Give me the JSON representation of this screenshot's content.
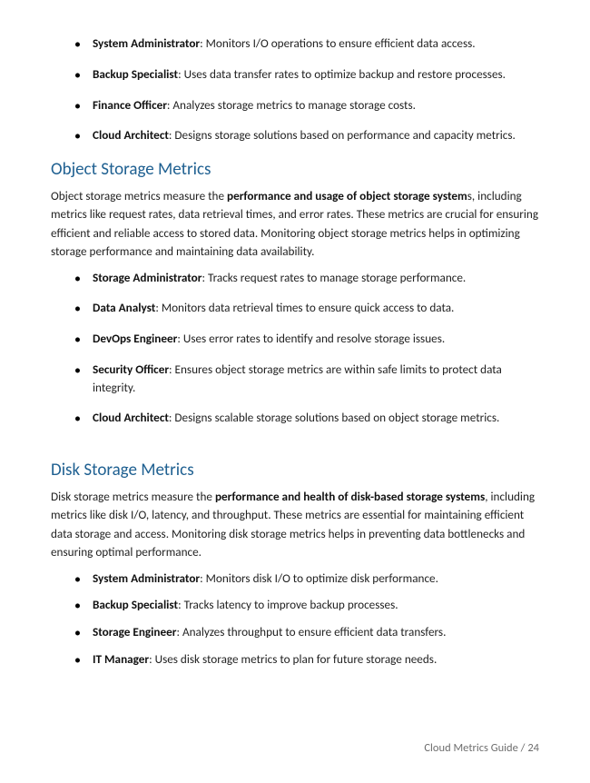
{
  "colors": {
    "heading": "#1f6091",
    "body_text": "#222222",
    "footer_text": "#6e6e6e",
    "background": "#ffffff"
  },
  "typography": {
    "body_font": "Segoe UI",
    "body_size_pt": 10,
    "heading_size_pt": 14,
    "heading_weight": 400
  },
  "top_list": [
    {
      "role": "System Administrator",
      "desc": ": Monitors I/O operations to ensure efficient data access."
    },
    {
      "role": "Backup Specialist",
      "desc": ": Uses data transfer rates to optimize backup and restore processes."
    },
    {
      "role": "Finance Officer",
      "desc": ": Analyzes storage metrics to manage storage costs."
    },
    {
      "role": "Cloud Architect",
      "desc": ": Designs storage solutions based on performance and capacity metrics."
    }
  ],
  "sections": [
    {
      "heading": "Object Storage Metrics",
      "para_pre": "Object storage metrics measure the ",
      "para_bold": "performance and usage of object storage system",
      "para_post": "s, including metrics like request rates, data retrieval times, and error rates. These metrics are crucial for ensuring efficient and reliable access to stored data. Monitoring object storage metrics helps in optimizing storage performance and maintaining data availability.",
      "items": [
        {
          "role": "Storage Administrator",
          "desc": ": Tracks request rates to manage storage performance."
        },
        {
          "role": "Data Analyst",
          "desc": ": Monitors data retrieval times to ensure quick access to data."
        },
        {
          "role": "DevOps Engineer",
          "desc": ": Uses error rates to identify and resolve storage issues."
        },
        {
          "role": "Security Officer",
          "desc": ": Ensures object storage metrics are within safe limits to protect data integrity."
        },
        {
          "role": "Cloud Architect",
          "desc": ": Designs scalable storage solutions based on object storage metrics."
        }
      ]
    },
    {
      "heading": "Disk Storage Metrics",
      "para_pre": "Disk storage metrics measure the ",
      "para_bold": "performance and health of disk-based storage systems",
      "para_post": ", including metrics like disk I/O, latency, and throughput. These metrics are essential for maintaining efficient data storage and access. Monitoring disk storage metrics helps in preventing data bottlenecks and ensuring optimal performance.",
      "items": [
        {
          "role": "System Administrator",
          "desc": ": Monitors disk I/O to optimize disk performance."
        },
        {
          "role": "Backup Specialist",
          "desc": ": Tracks latency to improve backup processes."
        },
        {
          "role": "Storage Engineer",
          "desc": ": Analyzes throughput to ensure efficient data transfers."
        },
        {
          "role": "IT Manager",
          "desc": ": Uses disk storage metrics to plan for future storage needs."
        }
      ]
    }
  ],
  "footer": {
    "title": "Cloud Metrics Guide",
    "separator": " / ",
    "page": "24"
  }
}
